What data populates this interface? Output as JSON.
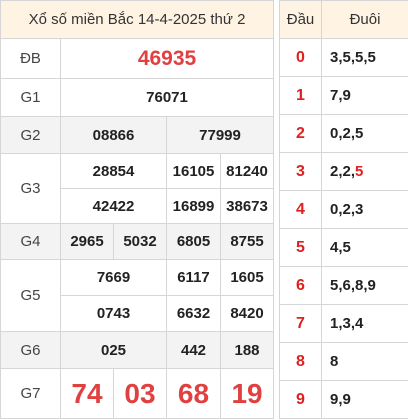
{
  "title": "Xổ số miền Bắc 14-4-2025 thứ 2",
  "prizes": {
    "db": {
      "label": "ĐB",
      "numbers": [
        "46935"
      ]
    },
    "g1": {
      "label": "G1",
      "numbers": [
        "76071"
      ]
    },
    "g2": {
      "label": "G2",
      "numbers": [
        "08866",
        "77999"
      ]
    },
    "g3": {
      "label": "G3",
      "numbers": [
        "28854",
        "16105",
        "81240",
        "42422",
        "16899",
        "38673"
      ]
    },
    "g4": {
      "label": "G4",
      "numbers": [
        "2965",
        "5032",
        "6805",
        "8755"
      ]
    },
    "g5": {
      "label": "G5",
      "numbers": [
        "7669",
        "6117",
        "1605",
        "0743",
        "6632",
        "8420"
      ]
    },
    "g6": {
      "label": "G6",
      "numbers": [
        "025",
        "442",
        "188"
      ]
    },
    "g7": {
      "label": "G7",
      "numbers": [
        "74",
        "03",
        "68",
        "19"
      ]
    }
  },
  "loto": {
    "header_dau": "Đầu",
    "header_duoi": "Đuôi",
    "rows": [
      {
        "dau": "0",
        "duoi": "3,5,5,5"
      },
      {
        "dau": "1",
        "duoi": "7,9"
      },
      {
        "dau": "2",
        "duoi": "0,2,5"
      },
      {
        "dau": "3",
        "duoi": "2,2,",
        "duoi_highlight": "5"
      },
      {
        "dau": "4",
        "duoi": "0,2,3"
      },
      {
        "dau": "5",
        "duoi": "4,5"
      },
      {
        "dau": "6",
        "duoi": "5,6,8,9"
      },
      {
        "dau": "7",
        "duoi": "1,3,4"
      },
      {
        "dau": "8",
        "duoi": "8"
      },
      {
        "dau": "9",
        "duoi": "9,9"
      }
    ]
  },
  "colors": {
    "highlight": "#e01f1f",
    "header_bg": "#fff4e4",
    "stripe_bg": "#f3f3f3"
  }
}
